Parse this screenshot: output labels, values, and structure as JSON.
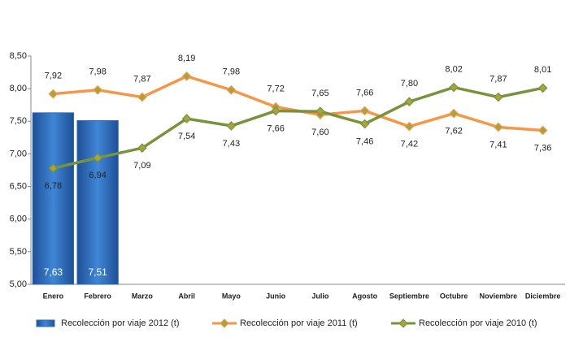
{
  "chart_data": {
    "type": "bar-line",
    "categories": [
      "Enero",
      "Febrero",
      "Marzo",
      "Abril",
      "Mayo",
      "Junio",
      "Julio",
      "Agosto",
      "Septiembre",
      "Octubre",
      "Noviembre",
      "Diciembre"
    ],
    "ylim": [
      5.0,
      8.5
    ],
    "yticks": [
      {
        "value": 5.0,
        "label": "5,00"
      },
      {
        "value": 5.5,
        "label": "5,50"
      },
      {
        "value": 6.0,
        "label": "6,00"
      },
      {
        "value": 6.5,
        "label": "6,50"
      },
      {
        "value": 7.0,
        "label": "7,00"
      },
      {
        "value": 7.5,
        "label": "7,50"
      },
      {
        "value": 8.0,
        "label": "8,00"
      },
      {
        "value": 8.5,
        "label": "8,50"
      }
    ],
    "series": [
      {
        "name": "Recolección por viaje 2012 (t)",
        "kind": "bar",
        "color": "#2f6db8",
        "values": [
          7.63,
          7.51,
          null,
          null,
          null,
          null,
          null,
          null,
          null,
          null,
          null,
          null
        ],
        "value_labels": [
          "7,63",
          "7,51",
          null,
          null,
          null,
          null,
          null,
          null,
          null,
          null,
          null,
          null
        ]
      },
      {
        "name": "Recolección por viaje 2011 (t)",
        "kind": "line",
        "color": "#f79646",
        "values": [
          7.92,
          7.98,
          7.87,
          8.19,
          7.98,
          7.72,
          7.6,
          7.66,
          7.42,
          7.62,
          7.41,
          7.36
        ],
        "value_labels": [
          "7,92",
          "7,98",
          "7,87",
          "8,19",
          "7,98",
          "7,72",
          "7,60",
          "7,66",
          "7,42",
          "7,62",
          "7,41",
          "7,36"
        ]
      },
      {
        "name": "Recolección por viaje 2010 (t)",
        "kind": "line",
        "color": "#77933c",
        "values": [
          6.78,
          6.94,
          7.09,
          7.54,
          7.43,
          7.66,
          7.65,
          7.46,
          7.8,
          8.02,
          7.87,
          8.01
        ],
        "value_labels": [
          "6,78",
          "6,94",
          "7,09",
          "7,54",
          "7,43",
          "7,66",
          "7,65",
          "7,46",
          "7,80",
          "8,02",
          "7,87",
          "8,01"
        ]
      }
    ]
  }
}
